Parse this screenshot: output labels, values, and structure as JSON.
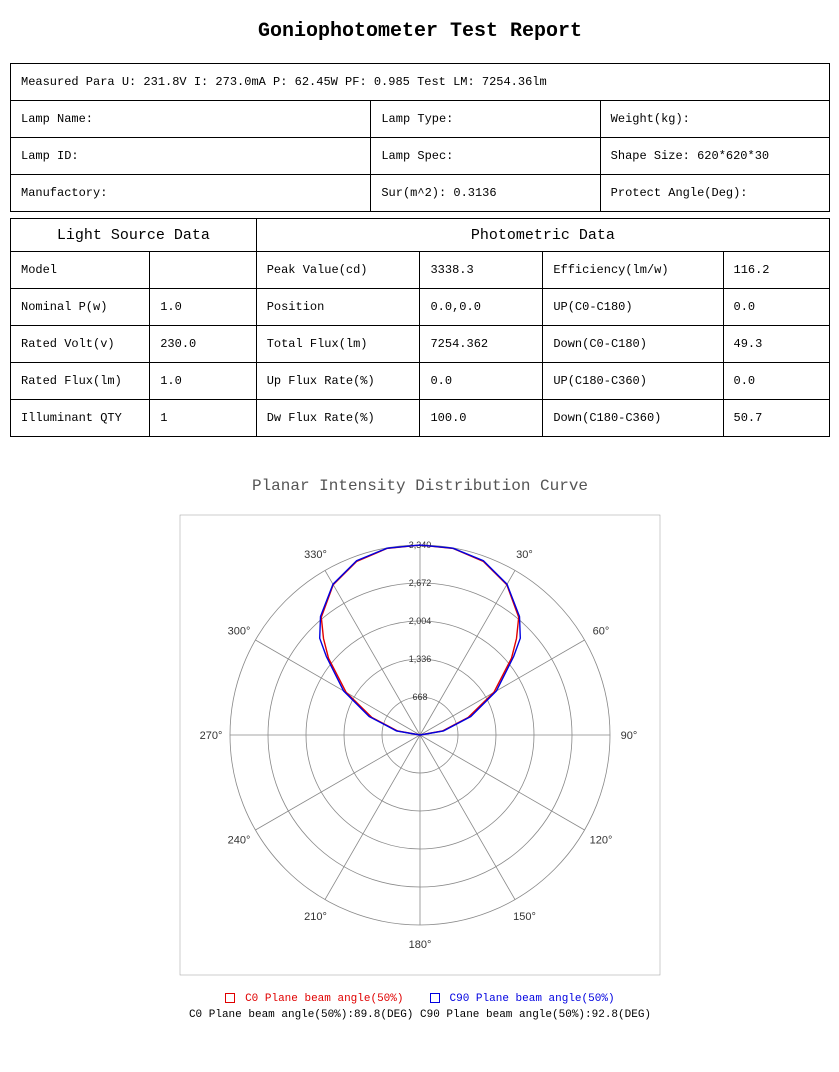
{
  "title": "Goniophotometer Test Report",
  "measured_para": "Measured Para  U: 231.8V  I: 273.0mA  P: 62.45W  PF: 0.985  Test LM: 7254.36lm",
  "info": {
    "lamp_name_label": "Lamp Name:",
    "lamp_type_label": "Lamp Type:",
    "weight_label": "Weight(kg):",
    "lamp_id_label": "Lamp ID:",
    "lamp_spec_label": "Lamp Spec:",
    "shape_size_label": "Shape Size: 620*620*30",
    "manufactory_label": "Manufactory:",
    "sur_label": "Sur(m^2): 0.3136",
    "protect_angle_label": "Protect Angle(Deg):"
  },
  "light_source_header": "Light Source Data",
  "photometric_header": "Photometric Data",
  "tbl": {
    "r0c0": "Model",
    "r0c1": "",
    "r0c2": "Peak Value(cd)",
    "r0c3": "3338.3",
    "r0c4": "Efficiency(lm/w)",
    "r0c5": "116.2",
    "r1c0": "Nominal P(w)",
    "r1c1": "1.0",
    "r1c2": "Position",
    "r1c3": "0.0,0.0",
    "r1c4": "UP(C0-C180)",
    "r1c5": "0.0",
    "r2c0": "Rated Volt(v)",
    "r2c1": "230.0",
    "r2c2": "Total Flux(lm)",
    "r2c3": "7254.362",
    "r2c4": "Down(C0-C180)",
    "r2c5": "49.3",
    "r3c0": "Rated Flux(lm)",
    "r3c1": "1.0",
    "r3c2": "Up Flux Rate(%)",
    "r3c3": "0.0",
    "r3c4": "UP(C180-C360)",
    "r3c5": "0.0",
    "r4c0": "Illuminant QTY",
    "r4c1": "1",
    "r4c2": "Dw Flux Rate(%)",
    "r4c3": "100.0",
    "r4c4": "Down(C180-C360)",
    "r4c5": "50.7"
  },
  "chart": {
    "title": "Planar Intensity Distribution Curve",
    "angle_labels": [
      "180°",
      "210°",
      "240°",
      "270°",
      "300°",
      "330°",
      "150°",
      "120°",
      "90°",
      "60°",
      "30°"
    ],
    "ring_labels": [
      "668",
      "1,336",
      "2,004",
      "2,672",
      "3,340"
    ],
    "max_value": 3340,
    "c0_color": "#e00000",
    "c90_color": "#0000e0",
    "grid_color": "#888888",
    "c0_series": [
      {
        "a": -90,
        "r": 0
      },
      {
        "a": -80,
        "r": 400
      },
      {
        "a": -70,
        "r": 900
      },
      {
        "a": -60,
        "r": 1500
      },
      {
        "a": -50,
        "r": 2100
      },
      {
        "a": -45,
        "r": 2400
      },
      {
        "a": -40,
        "r": 2700
      },
      {
        "a": -30,
        "r": 3050
      },
      {
        "a": -20,
        "r": 3250
      },
      {
        "a": -10,
        "r": 3330
      },
      {
        "a": 0,
        "r": 3338
      },
      {
        "a": 10,
        "r": 3330
      },
      {
        "a": 20,
        "r": 3250
      },
      {
        "a": 30,
        "r": 3050
      },
      {
        "a": 40,
        "r": 2700
      },
      {
        "a": 45,
        "r": 2400
      },
      {
        "a": 50,
        "r": 2100
      },
      {
        "a": 60,
        "r": 1500
      },
      {
        "a": 70,
        "r": 900
      },
      {
        "a": 80,
        "r": 400
      },
      {
        "a": 90,
        "r": 0
      }
    ],
    "c90_series": [
      {
        "a": -90,
        "r": 0
      },
      {
        "a": -80,
        "r": 420
      },
      {
        "a": -70,
        "r": 950
      },
      {
        "a": -60,
        "r": 1550
      },
      {
        "a": -50,
        "r": 2150
      },
      {
        "a": -46,
        "r": 2450
      },
      {
        "a": -40,
        "r": 2720
      },
      {
        "a": -30,
        "r": 3060
      },
      {
        "a": -20,
        "r": 3260
      },
      {
        "a": -10,
        "r": 3335
      },
      {
        "a": 0,
        "r": 3338
      },
      {
        "a": 10,
        "r": 3335
      },
      {
        "a": 20,
        "r": 3260
      },
      {
        "a": 30,
        "r": 3060
      },
      {
        "a": 40,
        "r": 2720
      },
      {
        "a": 46,
        "r": 2450
      },
      {
        "a": 50,
        "r": 2150
      },
      {
        "a": 60,
        "r": 1550
      },
      {
        "a": 70,
        "r": 950
      },
      {
        "a": 80,
        "r": 420
      },
      {
        "a": 90,
        "r": 0
      }
    ],
    "legend_c0": "C0 Plane beam angle(50%)",
    "legend_c90": "C90 Plane beam angle(50%)",
    "legend_line2": "C0 Plane beam angle(50%):89.8(DEG)  C90 Plane beam angle(50%):92.8(DEG)"
  }
}
